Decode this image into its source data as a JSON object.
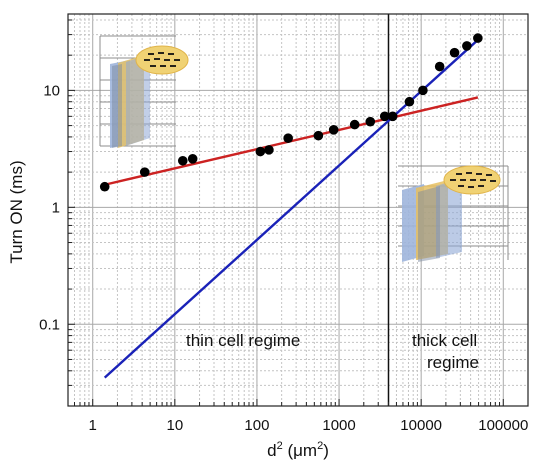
{
  "chart_data": {
    "type": "scatter",
    "xscale": "log",
    "yscale": "log",
    "xlim": [
      0.5,
      200000
    ],
    "ylim": [
      0.02,
      45
    ],
    "grid": true,
    "xlabel": "d",
    "xlabel_sup": "2",
    "xlabel_unit_open": " (μm",
    "xlabel_unit_sup": "2",
    "xlabel_unit_close": ")",
    "ylabel": "Turn ON (ms)",
    "x_tick_labels": [
      "1",
      "10",
      "100",
      "1000",
      "10000",
      "100000"
    ],
    "y_tick_labels": [
      "0.1",
      "1",
      "10"
    ],
    "vline_x": 4000,
    "annotations": {
      "thin": "thin cell regime",
      "thick_line1": "thick cell",
      "thick_line2": "regime"
    },
    "points": {
      "x": [
        1.4,
        4.3,
        12.5,
        16.5,
        110,
        140,
        240,
        560,
        860,
        1550,
        2400,
        3600,
        4500,
        7200,
        10500,
        16800,
        25500,
        36000,
        49000
      ],
      "y": [
        1.5,
        2.0,
        2.5,
        2.6,
        3.0,
        3.1,
        3.9,
        4.1,
        4.6,
        5.1,
        5.4,
        6.0,
        6.0,
        8.0,
        10.0,
        16.0,
        21.0,
        24.0,
        28.0
      ]
    },
    "fit_lines": [
      {
        "color": "#cc2222",
        "x": [
          1.4,
          49000
        ],
        "y": [
          1.56,
          8.7
        ]
      },
      {
        "color": "#1a22b8",
        "x": [
          1.4,
          49000
        ],
        "y": [
          0.035,
          27.0
        ]
      }
    ],
    "marker_color": "#000000"
  }
}
